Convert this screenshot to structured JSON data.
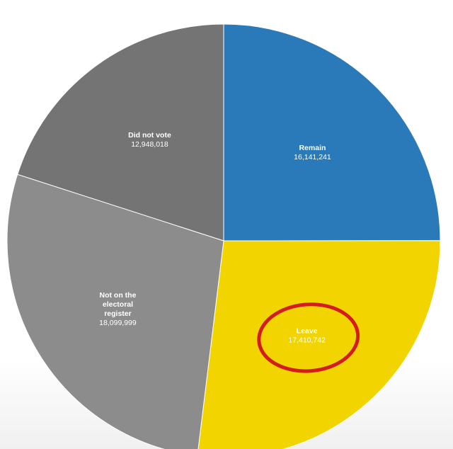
{
  "chart_data": {
    "type": "pie",
    "title": "",
    "slices": [
      {
        "label_lines": [
          "Remain"
        ],
        "value": 16141241,
        "value_text": "16,141,241",
        "color": "#2a7ab9"
      },
      {
        "label_lines": [
          "Leave"
        ],
        "value": 17410742,
        "value_text": "17,410,742",
        "color": "#f2d400"
      },
      {
        "label_lines": [
          "Not on the",
          "electoral",
          "register"
        ],
        "value": 18099999,
        "value_text": "18,099,999",
        "color": "#8c8c8c"
      },
      {
        "label_lines": [
          "Did not vote"
        ],
        "value": 12948018,
        "value_text": "12,948,018",
        "color": "#747474"
      }
    ],
    "start_angle_deg": 90,
    "direction": "clockwise",
    "highlighted_slice": "Leave",
    "highlight_color": "#d41c1c"
  }
}
